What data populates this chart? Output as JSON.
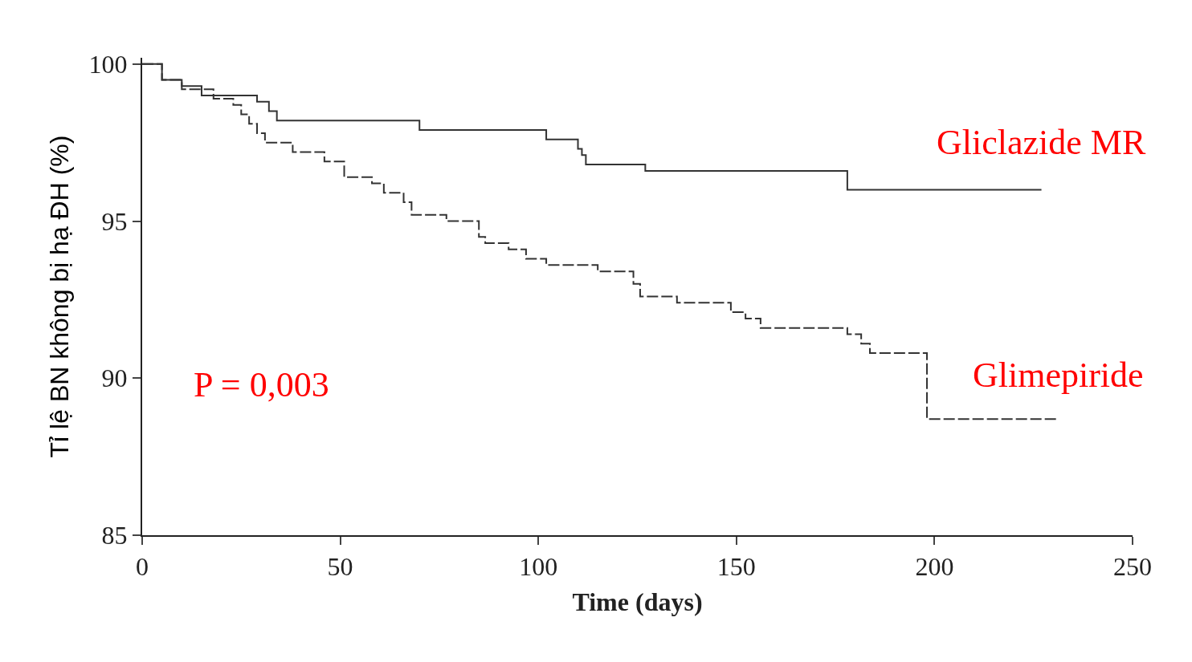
{
  "chart_data": {
    "type": "step",
    "xlabel": "Time (days)",
    "ylabel": "Tỉ lệ BN không bị hạ ĐH (%)",
    "xlim": [
      0,
      250
    ],
    "xticks": [
      0,
      50,
      100,
      150,
      200,
      250
    ],
    "ylim": [
      85,
      100.2
    ],
    "yticks": [
      85,
      90,
      95,
      100
    ],
    "legend": false,
    "series": [
      {
        "name": "Gliclazide MR",
        "color": "#333333",
        "line_style": "solid",
        "x": [
          0,
          5,
          10,
          15,
          29,
          32,
          34,
          70,
          102,
          110,
          111,
          112,
          127,
          178,
          227
        ],
        "values": [
          100,
          99.5,
          99.3,
          99.0,
          98.8,
          98.5,
          98.2,
          97.9,
          97.6,
          97.3,
          97.1,
          96.8,
          96.6,
          96.0,
          96.0
        ]
      },
      {
        "name": "Glimepiride",
        "color": "#333333",
        "line_style": "dashed",
        "x": [
          0,
          5,
          10,
          18,
          23,
          25,
          27,
          29,
          31,
          38,
          46,
          51,
          58,
          61,
          66,
          68,
          76.8,
          85,
          86.6,
          92.5,
          96.9,
          102,
          115,
          124,
          125.7,
          135,
          148.6,
          152.3,
          156.1,
          178,
          181.5,
          183.7,
          198.1,
          231.2
        ],
        "values": [
          100,
          99.5,
          99.2,
          98.9,
          98.7,
          98.4,
          98.1,
          97.8,
          97.5,
          97.2,
          96.9,
          96.4,
          96.2,
          95.9,
          95.6,
          95.2,
          95.0,
          94.5,
          94.3,
          94.1,
          93.8,
          93.6,
          93.4,
          93.0,
          92.6,
          92.4,
          92.1,
          91.9,
          91.6,
          91.4,
          91.1,
          90.8,
          88.7,
          88.7
        ]
      }
    ],
    "annotations": [
      "P = 0,003"
    ]
  }
}
